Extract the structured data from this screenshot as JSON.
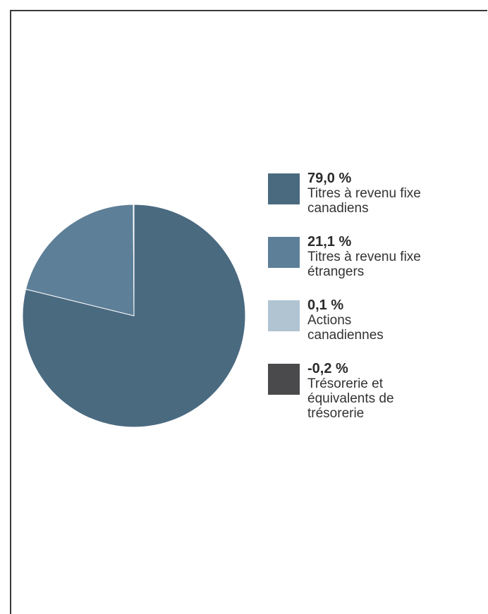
{
  "chart_data": {
    "type": "pie",
    "title": "",
    "slices": [
      {
        "value_label": "79,0 %",
        "label": "Titres à revenu fixe\ncanadiens",
        "value": 79.0,
        "color": "#4a6a80"
      },
      {
        "value_label": "21,1 %",
        "label": "Titres à revenu fixe\nétrangers",
        "value": 21.1,
        "color": "#5d7f98"
      },
      {
        "value_label": "0,1 %",
        "label": "Actions\ncanadiennes",
        "value": 0.1,
        "color": "#b0c4d2"
      },
      {
        "value_label": "-0,2 %",
        "label": "Trésorerie et\néquivalents de\ntrésorerie",
        "value": -0.2,
        "color": "#4a4a4c"
      }
    ],
    "legend_position": "right"
  }
}
